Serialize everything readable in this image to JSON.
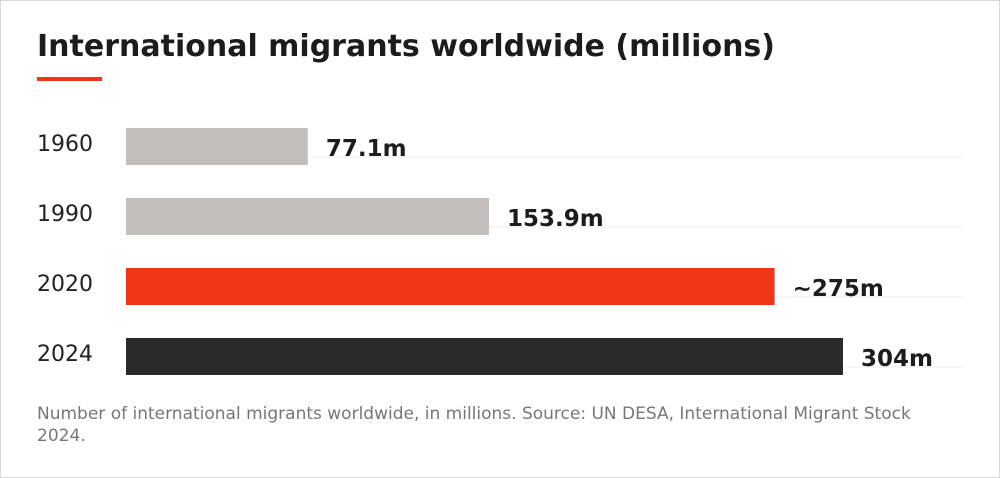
{
  "chart_data": {
    "type": "bar",
    "orientation": "horizontal",
    "title": "International migrants worldwide (millions)",
    "categories": [
      "1960",
      "1990",
      "2020",
      "2024"
    ],
    "values": [
      77.1,
      153.9,
      275,
      304
    ],
    "data_labels": [
      "77.1m",
      "153.9m",
      "~275m",
      "304m"
    ],
    "bar_colors": [
      "#c2bebb",
      "#c2bebb",
      "#f03518",
      "#2b2a29"
    ],
    "xlim": [
      0,
      340
    ],
    "grid": false,
    "legend": "none"
  },
  "footer": {
    "source": "Number of international migrants worldwide, in millions. Source: UN DESA, International Migrant Stock 2024."
  },
  "colors": {
    "accent": "#f03518",
    "muted_bar": "#c2bebb",
    "dark_bar": "#2b2a29",
    "title_text": "#1c1c1c",
    "source_text": "#777777"
  }
}
